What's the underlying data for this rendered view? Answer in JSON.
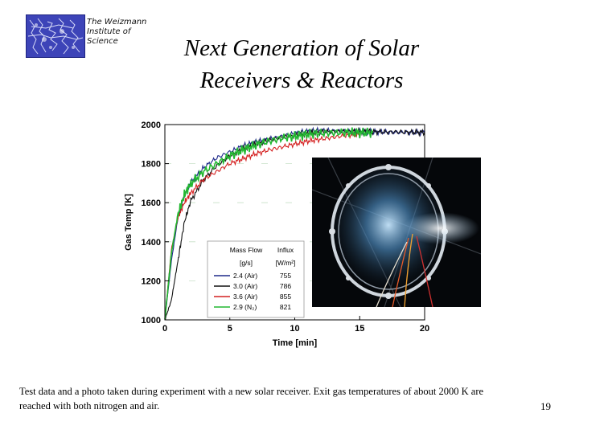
{
  "header": {
    "logo_caption_lines": [
      "The Weizmann",
      "Institute of",
      "Science"
    ],
    "title_lines": [
      "Next Generation of Solar",
      "Receivers & Reactors"
    ]
  },
  "colors": {
    "logo_bg": "#3d44b8",
    "series_blue": "#1f2a8a",
    "series_black": "#111111",
    "series_red": "#d42020",
    "series_green": "#22b830"
  },
  "chart_data": {
    "type": "line",
    "title": "",
    "xlabel": "Time [min]",
    "ylabel": "Gas Temp [K]",
    "xlim": [
      0,
      20
    ],
    "ylim": [
      1000,
      2000
    ],
    "x_ticks": [
      0,
      5,
      10,
      15,
      20
    ],
    "y_ticks": [
      1000,
      1200,
      1400,
      1600,
      1800,
      2000
    ],
    "legend": {
      "placement": "bottom-center",
      "header_col1": "Mass Flow",
      "header_col2": "Influx",
      "unit_col1": "[g/s]",
      "unit_col2": "[W/m²]"
    },
    "series": [
      {
        "name": "2.4 (Air)",
        "influx": "755",
        "color": "#1f2a8a",
        "x": [
          0,
          0.5,
          1,
          1.5,
          2,
          3,
          4,
          5,
          6,
          7,
          8,
          9,
          10,
          11,
          12,
          13,
          14,
          15,
          16,
          17,
          18,
          19,
          20
        ],
        "y": [
          1000,
          1300,
          1520,
          1640,
          1700,
          1780,
          1830,
          1860,
          1890,
          1910,
          1925,
          1940,
          1955,
          1965,
          1970,
          1968,
          1966,
          1965,
          1963,
          1962,
          1960,
          1960,
          1958
        ]
      },
      {
        "name": "3.0 (Air)",
        "influx": "786",
        "color": "#111111",
        "x": [
          0,
          0.5,
          1,
          1.5,
          2,
          3,
          4,
          5,
          6,
          7,
          8,
          9,
          10,
          11,
          12,
          13,
          14,
          15,
          16,
          17,
          18,
          19,
          20
        ],
        "y": [
          1000,
          1100,
          1300,
          1500,
          1610,
          1720,
          1790,
          1840,
          1875,
          1900,
          1920,
          1935,
          1945,
          1955,
          1962,
          1965,
          1965,
          1965,
          1963,
          1962,
          1962,
          1961,
          1960
        ]
      },
      {
        "name": "3.6 (Air)",
        "influx": "855",
        "color": "#d42020",
        "x": [
          0,
          0.5,
          1,
          1.5,
          2,
          3,
          4,
          5,
          6,
          7,
          8,
          9,
          10,
          11,
          12,
          13,
          14,
          15
        ],
        "y": [
          1000,
          1360,
          1520,
          1600,
          1650,
          1720,
          1760,
          1800,
          1825,
          1850,
          1870,
          1885,
          1900,
          1915,
          1925,
          1935,
          1945,
          1950
        ]
      },
      {
        "name": "2.9 (N₂)",
        "influx": "821",
        "color": "#22b830",
        "x": [
          0,
          0.5,
          1,
          1.5,
          2,
          3,
          4,
          5,
          6,
          7,
          8,
          9,
          10,
          11,
          12,
          13,
          14,
          15,
          16
        ],
        "y": [
          1000,
          1340,
          1540,
          1640,
          1700,
          1760,
          1800,
          1840,
          1870,
          1895,
          1915,
          1930,
          1940,
          1950,
          1955,
          1958,
          1960,
          1958,
          1958
        ]
      }
    ]
  },
  "caption": "Test data and a photo taken during experiment with a new solar receiver. Exit gas temperatures of about 2000 K are reached with both nitrogen and air.",
  "page_number": "19"
}
